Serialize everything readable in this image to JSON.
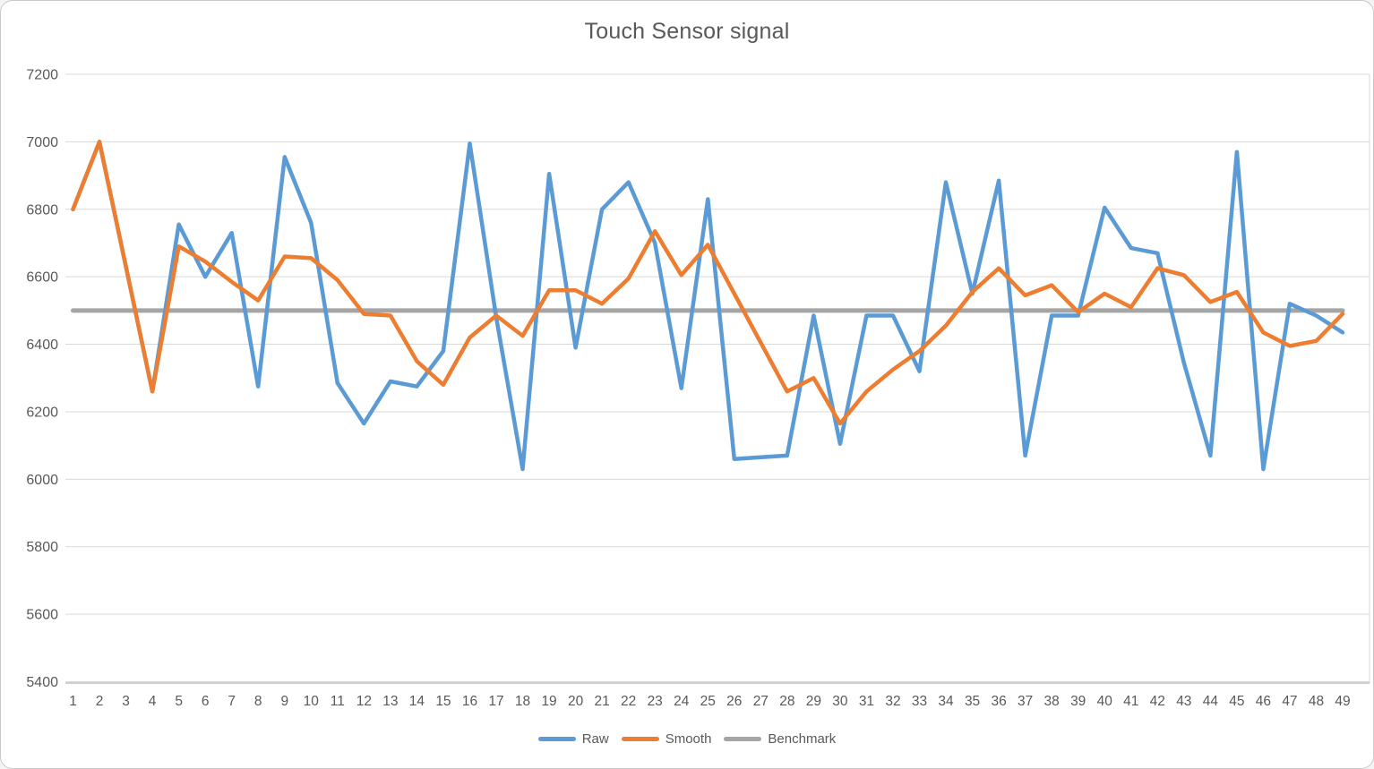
{
  "window": {
    "background": "#ffffff",
    "border_color": "#c9c9c9"
  },
  "chart_data": {
    "type": "line",
    "title": "Touch Sensor signal",
    "xlabel": "",
    "ylabel": "",
    "ylim": [
      5400,
      7200
    ],
    "y_ticks": [
      5400,
      5600,
      5800,
      6000,
      6200,
      6400,
      6600,
      6800,
      7000,
      7200
    ],
    "grid": true,
    "legend_position": "bottom",
    "categories": [
      1,
      2,
      3,
      4,
      5,
      6,
      7,
      8,
      9,
      10,
      11,
      12,
      13,
      14,
      15,
      16,
      17,
      18,
      19,
      20,
      21,
      22,
      23,
      24,
      25,
      26,
      27,
      28,
      29,
      30,
      31,
      32,
      33,
      34,
      35,
      36,
      37,
      38,
      39,
      40,
      41,
      42,
      43,
      44,
      45,
      46,
      47,
      48,
      49
    ],
    "series": [
      {
        "name": "Raw",
        "color": "#5B9BD5",
        "values": [
          6800,
          7000,
          6630,
          6260,
          6755,
          6600,
          6730,
          6275,
          6955,
          6760,
          6285,
          6165,
          6290,
          6275,
          6380,
          6995,
          6480,
          6030,
          6905,
          6390,
          6800,
          6880,
          6700,
          6270,
          6830,
          6060,
          6065,
          6070,
          6485,
          6105,
          6485,
          6485,
          6320,
          6880,
          6550,
          6885,
          6070,
          6485,
          6485,
          6805,
          6685,
          6670,
          6345,
          6070,
          6970,
          6030,
          6520,
          6485,
          6435
        ]
      },
      {
        "name": "Smooth",
        "color": "#ED7D31",
        "values": [
          6800,
          7000,
          6630,
          6260,
          6690,
          6645,
          6585,
          6530,
          6660,
          6655,
          6590,
          6490,
          6485,
          6350,
          6280,
          6420,
          6485,
          6425,
          6560,
          6560,
          6520,
          6595,
          6735,
          6605,
          6695,
          6550,
          6405,
          6260,
          6300,
          6165,
          6260,
          6325,
          6380,
          6455,
          6555,
          6625,
          6545,
          6575,
          6495,
          6550,
          6510,
          6625,
          6605,
          6525,
          6555,
          6435,
          6395,
          6410,
          6490
        ]
      },
      {
        "name": "Benchmark",
        "color": "#A5A5A5",
        "constant": 6500
      }
    ],
    "colors": {
      "gridline": "#d9d9d9",
      "axis_line": "#bfbfbf",
      "tick_text": "#595959",
      "title_text": "#595959"
    }
  },
  "legend": {
    "raw_label": "Raw",
    "smooth_label": "Smooth",
    "benchmark_label": "Benchmark"
  }
}
